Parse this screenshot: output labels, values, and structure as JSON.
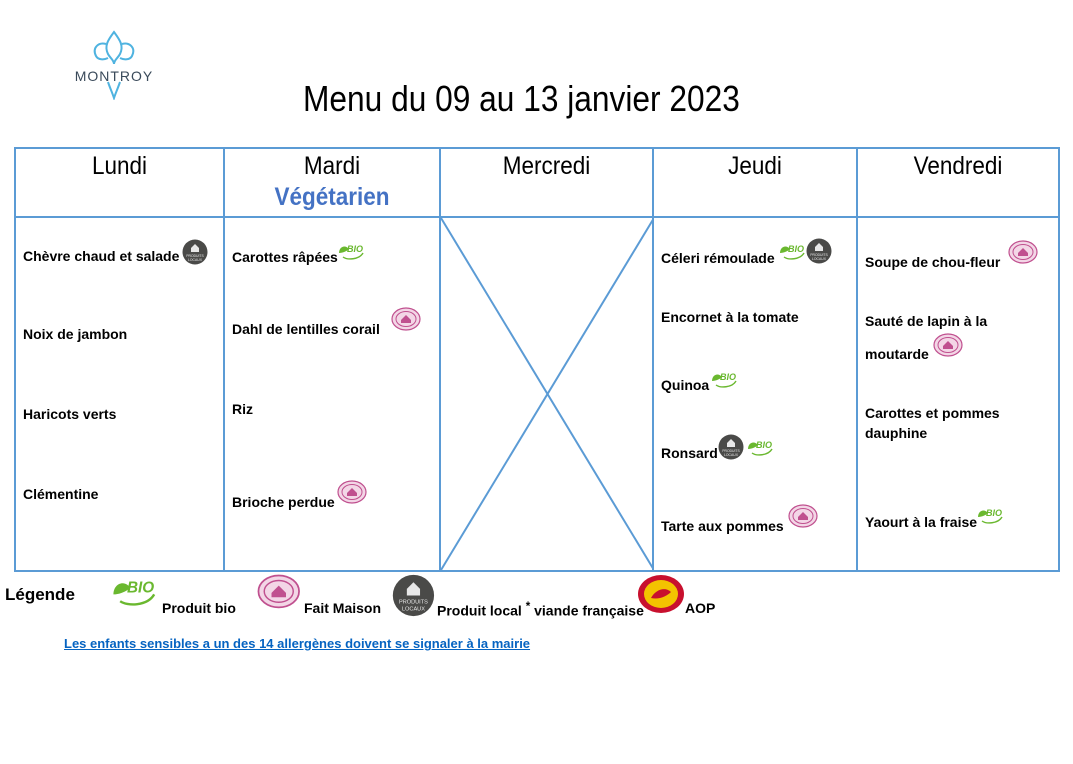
{
  "logo": {
    "text": "MONTROY",
    "icon": "fleur-de-lis-icon"
  },
  "title": "Menu du 09 au 13 janvier 2023",
  "days": [
    {
      "name": "Lundi",
      "subtitle": ""
    },
    {
      "name": "Mardi",
      "subtitle": "Végétarien"
    },
    {
      "name": "Mercredi",
      "subtitle": ""
    },
    {
      "name": "Jeudi",
      "subtitle": ""
    },
    {
      "name": "Vendredi",
      "subtitle": ""
    }
  ],
  "lundi": {
    "items": [
      "Chèvre chaud et salade",
      "Noix de jambon",
      "Haricots verts",
      "Clémentine"
    ],
    "badges": [
      [
        "local"
      ],
      [],
      [],
      []
    ]
  },
  "mardi": {
    "items": [
      "Carottes râpées",
      "Dahl de lentilles corail",
      "Riz",
      "Brioche perdue"
    ],
    "badges": [
      [
        "bio"
      ],
      [
        "maison"
      ],
      [],
      [
        "maison"
      ]
    ]
  },
  "jeudi": {
    "items": [
      "Céleri rémoulade",
      "Encornet à la tomate",
      "Quinoa",
      "Ronsard",
      "Tarte aux pommes"
    ],
    "badges": [
      [
        "bio",
        "local"
      ],
      [],
      [
        "bio"
      ],
      [
        "local",
        "bio"
      ],
      [
        "maison"
      ]
    ]
  },
  "vendredi": {
    "items": [
      "Soupe de chou-fleur",
      "Sauté de lapin à la",
      "moutarde",
      "Carottes et pommes",
      "dauphine",
      "Yaourt à la fraise"
    ],
    "badges": [
      [
        "maison"
      ],
      [],
      [
        "maison"
      ],
      [],
      [],
      [
        "bio"
      ]
    ]
  },
  "legend": {
    "title": "Légende",
    "bio": "Produit bio",
    "maison": "Fait Maison",
    "local": "Produit local",
    "asterisk": "*",
    "local_suffix": "viande française",
    "aop": "AOP"
  },
  "badge_text": {
    "bio": "BIO",
    "local_top": "PRODUITS",
    "local_bottom": "LOCAUX"
  },
  "colors": {
    "border": "#5b9bd5",
    "vegetarian": "#4472c4",
    "bio_green": "#6ab82f",
    "maison_pink": "#c0508f",
    "local_dark": "#4a4a48",
    "aop_red": "#c8102e",
    "aop_yellow": "#f3c300",
    "link": "#0563c1"
  },
  "footer": "Les enfants sensibles a un des 14 allergènes doivent se signaler à la mairie"
}
